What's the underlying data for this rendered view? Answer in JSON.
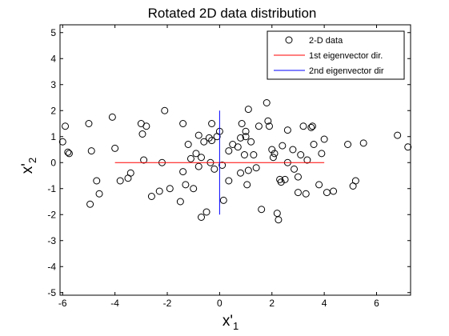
{
  "chart_data": {
    "type": "scatter",
    "title": "Rotated 2D data distribution",
    "xlabel": {
      "main": "x'",
      "sub": "1"
    },
    "ylabel": {
      "main": "x'",
      "sub": "2"
    },
    "xlim": [
      -6.1,
      7.3
    ],
    "ylim": [
      -5.1,
      5.3
    ],
    "xticks": [
      -6,
      -4,
      -2,
      0,
      2,
      4,
      6
    ],
    "yticks": [
      -5,
      -4,
      -3,
      -2,
      -1,
      0,
      1,
      2,
      3,
      4,
      5
    ],
    "grid": false,
    "legend": "top-right",
    "series": [
      {
        "name": "2-D data",
        "style": "circle-marker",
        "color": "#000000",
        "points": [
          [
            -6.0,
            0.8
          ],
          [
            -5.9,
            1.4
          ],
          [
            -5.8,
            0.4
          ],
          [
            -5.75,
            0.35
          ],
          [
            -5.0,
            1.5
          ],
          [
            -4.9,
            0.45
          ],
          [
            -4.95,
            -1.6
          ],
          [
            -4.7,
            -0.7
          ],
          [
            -4.6,
            -1.2
          ],
          [
            -4.1,
            1.75
          ],
          [
            -4.0,
            0.55
          ],
          [
            -3.8,
            -0.7
          ],
          [
            -3.5,
            -0.6
          ],
          [
            -3.4,
            -0.4
          ],
          [
            -3.0,
            1.5
          ],
          [
            -2.95,
            1.1
          ],
          [
            -2.9,
            0.1
          ],
          [
            -2.8,
            1.4
          ],
          [
            -2.6,
            -1.3
          ],
          [
            -2.3,
            -1.1
          ],
          [
            -2.2,
            0.0
          ],
          [
            -2.1,
            2.0
          ],
          [
            -1.9,
            -1.0
          ],
          [
            -1.5,
            -1.5
          ],
          [
            -1.4,
            -0.35
          ],
          [
            -1.3,
            -0.85
          ],
          [
            -1.2,
            0.7
          ],
          [
            -1.1,
            0.15
          ],
          [
            -1.0,
            -1.0
          ],
          [
            -0.9,
            0.35
          ],
          [
            -0.8,
            1.05
          ],
          [
            -0.8,
            -0.15
          ],
          [
            -0.7,
            -2.1
          ],
          [
            -0.6,
            0.8
          ],
          [
            -0.5,
            -1.9
          ],
          [
            -0.4,
            0.95
          ],
          [
            -0.3,
            0.85
          ],
          [
            -0.2,
            -0.25
          ],
          [
            -0.1,
            1.0
          ],
          [
            0.0,
            1.2
          ],
          [
            0.1,
            -0.1
          ],
          [
            -0.3,
            1.5
          ],
          [
            0.15,
            -1.45
          ],
          [
            0.35,
            0.45
          ],
          [
            0.35,
            -0.7
          ],
          [
            0.5,
            0.7
          ],
          [
            -0.7,
            0.2
          ],
          [
            -1.4,
            1.5
          ],
          [
            0.7,
            0.6
          ],
          [
            0.8,
            0.95
          ],
          [
            0.8,
            -0.4
          ],
          [
            0.85,
            1.5
          ],
          [
            0.95,
            0.3
          ],
          [
            1.0,
            1.0
          ],
          [
            1.0,
            1.2
          ],
          [
            1.05,
            -0.85
          ],
          [
            1.1,
            2.05
          ],
          [
            1.1,
            -0.3
          ],
          [
            1.2,
            0.8
          ],
          [
            1.3,
            0.3
          ],
          [
            1.4,
            -0.2
          ],
          [
            1.5,
            1.4
          ],
          [
            1.6,
            -1.8
          ],
          [
            1.8,
            2.3
          ],
          [
            1.85,
            1.6
          ],
          [
            1.9,
            1.4
          ],
          [
            2.0,
            0.5
          ],
          [
            2.05,
            0.2
          ],
          [
            2.1,
            0.35
          ],
          [
            2.2,
            -1.95
          ],
          [
            2.25,
            -2.2
          ],
          [
            2.3,
            -0.65
          ],
          [
            2.35,
            -0.75
          ],
          [
            2.4,
            0.65
          ],
          [
            2.5,
            -0.65
          ],
          [
            2.6,
            1.25
          ],
          [
            2.6,
            0.0
          ],
          [
            2.8,
            0.5
          ],
          [
            2.85,
            -0.25
          ],
          [
            3.0,
            -0.55
          ],
          [
            3.0,
            -1.15
          ],
          [
            3.1,
            0.3
          ],
          [
            3.2,
            1.4
          ],
          [
            3.3,
            -1.2
          ],
          [
            3.35,
            0.1
          ],
          [
            3.5,
            1.35
          ],
          [
            3.55,
            1.4
          ],
          [
            3.6,
            0.7
          ],
          [
            3.8,
            -0.85
          ],
          [
            3.9,
            0.35
          ],
          [
            4.0,
            0.9
          ],
          [
            4.1,
            -1.15
          ],
          [
            4.35,
            -1.1
          ],
          [
            4.9,
            0.7
          ],
          [
            5.1,
            -0.9
          ],
          [
            5.2,
            -0.7
          ],
          [
            5.5,
            0.75
          ],
          [
            6.8,
            1.05
          ],
          [
            7.2,
            0.6
          ],
          [
            -0.35,
            0.0
          ]
        ]
      },
      {
        "name": "1st eigenvector dir.",
        "style": "line",
        "color": "#ff0000",
        "x": [
          -4.0,
          4.0
        ],
        "y": [
          0,
          0
        ]
      },
      {
        "name": "2nd eigenvector dir",
        "style": "line",
        "color": "#0000ff",
        "x": [
          0,
          0
        ],
        "y": [
          -2.0,
          2.0
        ]
      }
    ]
  }
}
